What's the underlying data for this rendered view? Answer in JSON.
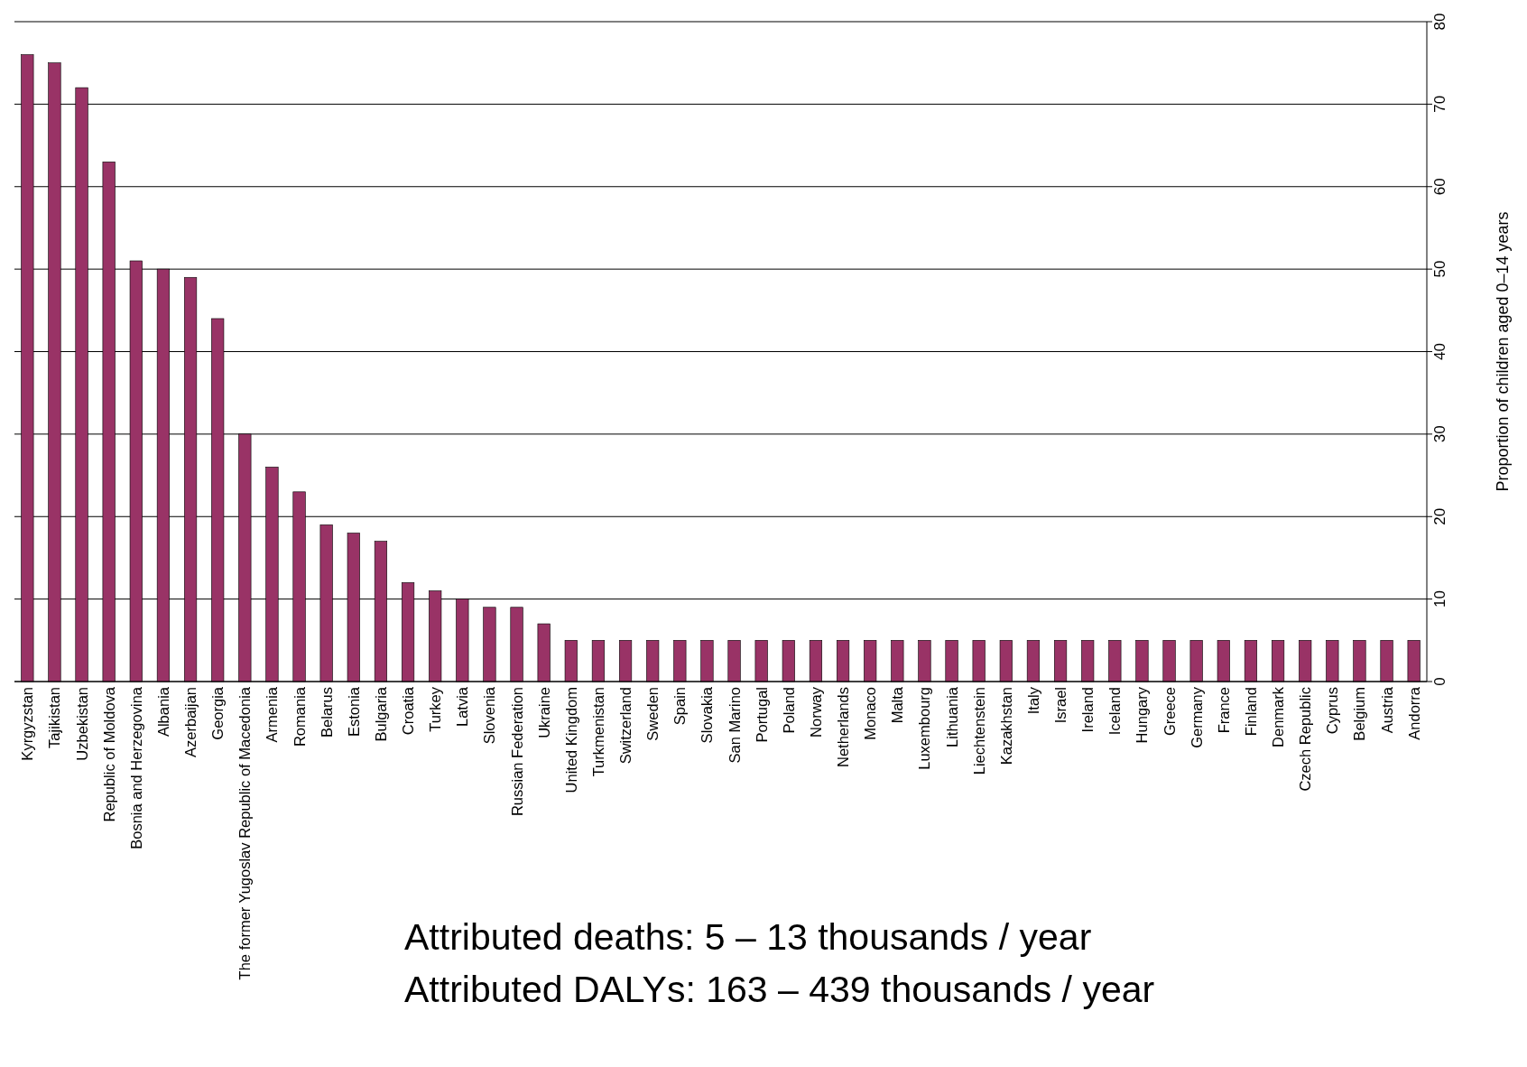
{
  "chart_data": {
    "type": "bar",
    "ylabel": "Proportion of children aged 0–14 years",
    "categories": [
      "Kyrgyzstan",
      "Tajikistan",
      "Uzbekistan",
      "Republic of Moldova",
      "Bosnia and Herzegovina",
      "Albania",
      "Azerbaijan",
      "Georgia",
      "The former Yugoslav Republic of Macedonia",
      "Armenia",
      "Romania",
      "Belarus",
      "Estonia",
      "Bulgaria",
      "Croatia",
      "Turkey",
      "Latvia",
      "Slovenia",
      "Russian Federation",
      "Ukraine",
      "United Kingdom",
      "Turkmenistan",
      "Switzerland",
      "Sweden",
      "Spain",
      "Slovakia",
      "San Marino",
      "Portugal",
      "Poland",
      "Norway",
      "Netherlands",
      "Monaco",
      "Malta",
      "Luxembourg",
      "Lithuania",
      "Liechtenstein",
      "Kazakhstan",
      "Italy",
      "Israel",
      "Ireland",
      "Iceland",
      "Hungary",
      "Greece",
      "Germany",
      "France",
      "Finland",
      "Denmark",
      "Czech Republic",
      "Cyprus",
      "Belgium",
      "Austria",
      "Andorra"
    ],
    "values": [
      76,
      75,
      72,
      63,
      51,
      50,
      49,
      44,
      30,
      26,
      23,
      19,
      18,
      17,
      12,
      11,
      10,
      9,
      9,
      7,
      5,
      5,
      5,
      5,
      5,
      5,
      5,
      5,
      5,
      5,
      5,
      5,
      5,
      5,
      5,
      5,
      5,
      5,
      5,
      5,
      5,
      5,
      5,
      5,
      5,
      5,
      5,
      5,
      5,
      5,
      5,
      5
    ],
    "color": "#993366",
    "ylim": [
      0,
      80
    ],
    "yticks": [
      0,
      10,
      20,
      30,
      40,
      50,
      60,
      70,
      80
    ],
    "grid": "y",
    "annotations": [
      "Attributed deaths: 5 – 13 thousands / year",
      "Attributed DALYs: 163 – 439 thousands / year"
    ]
  }
}
